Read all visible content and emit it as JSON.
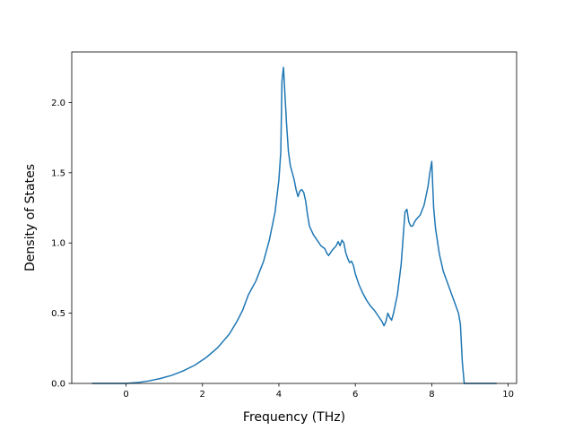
{
  "chart_data": {
    "type": "line",
    "title": "",
    "xlabel": "Frequency (THz)",
    "ylabel": "Density of States",
    "xlim": [
      -1.42,
      10.22
    ],
    "ylim": [
      0.0,
      2.36
    ],
    "xticks": [
      0,
      2,
      4,
      6,
      8,
      10
    ],
    "xtick_labels": [
      "0",
      "2",
      "4",
      "6",
      "8",
      "10"
    ],
    "yticks": [
      0.0,
      0.5,
      1.0,
      1.5,
      2.0
    ],
    "ytick_labels": [
      "0.0",
      "0.5",
      "1.0",
      "1.5",
      "2.0"
    ],
    "grid": false,
    "legend": "none",
    "colors": {
      "line": "#1f77b4",
      "axes": "#000000",
      "background": "#ffffff"
    },
    "series": [
      {
        "x": [
          -0.89,
          -0.5,
          0.0,
          0.3,
          0.6,
          0.9,
          1.2,
          1.5,
          1.8,
          2.1,
          2.4,
          2.7,
          2.9,
          3.05,
          3.2,
          3.4,
          3.6,
          3.75,
          3.9,
          4.0,
          4.05,
          4.08,
          4.12,
          4.15,
          4.2,
          4.25,
          4.3,
          4.4,
          4.45,
          4.5,
          4.55,
          4.6,
          4.65,
          4.7,
          4.75,
          4.8,
          4.9,
          5.0,
          5.1,
          5.2,
          5.25,
          5.3,
          5.35,
          5.4,
          5.5,
          5.55,
          5.6,
          5.65,
          5.7,
          5.75,
          5.8,
          5.85,
          5.9,
          5.95,
          6.0,
          6.1,
          6.2,
          6.3,
          6.4,
          6.5,
          6.6,
          6.7,
          6.75,
          6.8,
          6.85,
          6.9,
          6.95,
          7.0,
          7.1,
          7.2,
          7.3,
          7.35,
          7.4,
          7.45,
          7.5,
          7.55,
          7.6,
          7.7,
          7.8,
          7.9,
          7.95,
          8.0,
          8.05,
          8.1,
          8.2,
          8.3,
          8.5,
          8.7,
          8.75,
          8.8,
          8.85,
          9.0,
          9.3,
          9.7
        ],
        "y": [
          0.0,
          0.0,
          0.0,
          0.006,
          0.018,
          0.035,
          0.058,
          0.09,
          0.13,
          0.185,
          0.255,
          0.35,
          0.44,
          0.52,
          0.63,
          0.73,
          0.87,
          1.02,
          1.22,
          1.45,
          1.65,
          2.15,
          2.25,
          2.1,
          1.85,
          1.65,
          1.55,
          1.45,
          1.38,
          1.33,
          1.37,
          1.38,
          1.36,
          1.3,
          1.2,
          1.12,
          1.06,
          1.02,
          0.98,
          0.96,
          0.93,
          0.91,
          0.93,
          0.95,
          0.98,
          1.01,
          0.98,
          1.02,
          1.0,
          0.93,
          0.89,
          0.86,
          0.87,
          0.84,
          0.78,
          0.7,
          0.64,
          0.59,
          0.55,
          0.52,
          0.48,
          0.44,
          0.41,
          0.44,
          0.5,
          0.47,
          0.45,
          0.5,
          0.63,
          0.85,
          1.22,
          1.24,
          1.15,
          1.12,
          1.12,
          1.15,
          1.17,
          1.2,
          1.27,
          1.4,
          1.5,
          1.58,
          1.25,
          1.1,
          0.92,
          0.8,
          0.65,
          0.5,
          0.42,
          0.15,
          0.0,
          0.0,
          0.0,
          0.0
        ]
      }
    ]
  }
}
